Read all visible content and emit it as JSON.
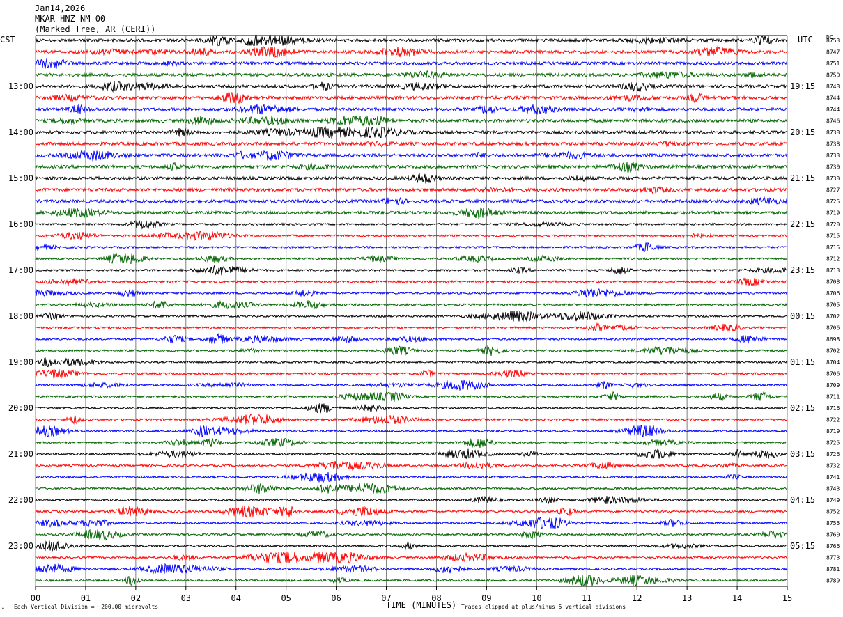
{
  "header": {
    "date": "Jan14,2026",
    "station": "MKAR HNZ NM 00",
    "location": "(Marked Tree, AR (CERI))"
  },
  "left_zone_label": "CST",
  "right_zone_label": "UTC",
  "dc_label": "DC",
  "footer": {
    "scale_note": "Each Vertical Division =  200.00 microvolts",
    "clip_note": "Traces clipped at plus/minus 5 vertical divisions"
  },
  "colors": {
    "cycle": [
      "#000000",
      "#ff0000",
      "#0000ff",
      "#006400"
    ],
    "grid": "#808080"
  },
  "chart_data": {
    "type": "line",
    "xlabel": "TIME (MINUTES)",
    "xlim": [
      0,
      15
    ],
    "x_ticks": [
      "00",
      "01",
      "02",
      "03",
      "04",
      "05",
      "06",
      "07",
      "08",
      "09",
      "10",
      "11",
      "12",
      "13",
      "14",
      "15"
    ],
    "trace_count": 48,
    "left_hour_labels": [
      {
        "trace": 4,
        "label": "13:00"
      },
      {
        "trace": 8,
        "label": "14:00"
      },
      {
        "trace": 12,
        "label": "15:00"
      },
      {
        "trace": 16,
        "label": "16:00"
      },
      {
        "trace": 20,
        "label": "17:00"
      },
      {
        "trace": 24,
        "label": "18:00"
      },
      {
        "trace": 28,
        "label": "19:00"
      },
      {
        "trace": 32,
        "label": "20:00"
      },
      {
        "trace": 36,
        "label": "21:00"
      },
      {
        "trace": 40,
        "label": "22:00"
      },
      {
        "trace": 44,
        "label": "23:00"
      }
    ],
    "right_hour_labels": [
      {
        "trace": 4,
        "label": "19:15"
      },
      {
        "trace": 8,
        "label": "20:15"
      },
      {
        "trace": 12,
        "label": "21:15"
      },
      {
        "trace": 16,
        "label": "22:15"
      },
      {
        "trace": 20,
        "label": "23:15"
      },
      {
        "trace": 24,
        "label": "00:15"
      },
      {
        "trace": 28,
        "label": "01:15"
      },
      {
        "trace": 32,
        "label": "02:15"
      },
      {
        "trace": 36,
        "label": "03:15"
      },
      {
        "trace": 40,
        "label": "04:15"
      },
      {
        "trace": 44,
        "label": "05:15"
      }
    ],
    "dc_values": [
      "8753",
      "8747",
      "8751",
      "8750",
      "8748",
      "8744",
      "8744",
      "8746",
      "8738",
      "8738",
      "8733",
      "8730",
      "8730",
      "8727",
      "8725",
      "8719",
      "8720",
      "8715",
      "8715",
      "8712",
      "8713",
      "8708",
      "8706",
      "8705",
      "8702",
      "8706",
      "8698",
      "8702",
      "8704",
      "8706",
      "8709",
      "8711",
      "8716",
      "8722",
      "8719",
      "8725",
      "8726",
      "8732",
      "8741",
      "8743",
      "8749",
      "8752",
      "8755",
      "8760",
      "8766",
      "8773",
      "8781",
      "8789"
    ]
  }
}
